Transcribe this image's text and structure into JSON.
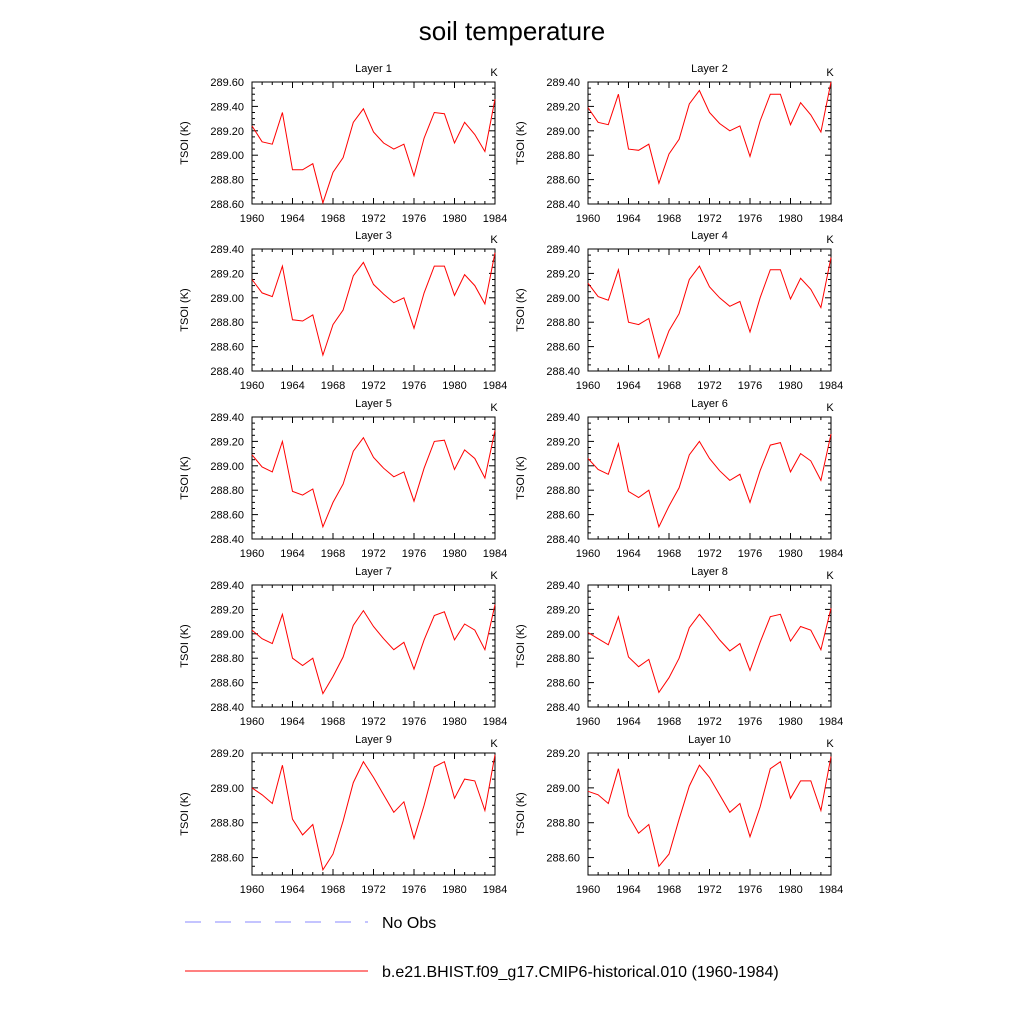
{
  "figure": {
    "title": "soil temperature",
    "legend": [
      {
        "label": "No Obs",
        "color": "#8888ff",
        "dash": true
      },
      {
        "label": "b.e21.BHIST.f09_g17.CMIP6-historical.010 (1960-1984)",
        "color": "#ff0000",
        "dash": false
      }
    ]
  },
  "chart_data": [
    {
      "type": "line",
      "title": "Layer 1",
      "units": "K",
      "ylabel": "TSOI  (K)",
      "xlim": [
        1960,
        1984
      ],
      "ylim": [
        288.6,
        289.6
      ],
      "xticks": [
        "1960",
        "1964",
        "1968",
        "1972",
        "1976",
        "1980",
        "1984"
      ],
      "yticks": [
        "288.60",
        "288.80",
        "289.00",
        "289.20",
        "289.40",
        "289.60"
      ],
      "x": [
        1960,
        1961,
        1962,
        1963,
        1964,
        1965,
        1966,
        1967,
        1968,
        1969,
        1970,
        1971,
        1972,
        1973,
        1974,
        1975,
        1976,
        1977,
        1978,
        1979,
        1980,
        1981,
        1982,
        1983,
        1984
      ],
      "series": [
        {
          "color": "#ff0000",
          "values": [
            289.24,
            289.11,
            289.09,
            289.35,
            288.88,
            288.88,
            288.93,
            288.61,
            288.86,
            288.98,
            289.27,
            289.38,
            289.19,
            289.1,
            289.05,
            289.09,
            288.83,
            289.14,
            289.35,
            289.34,
            289.1,
            289.27,
            289.17,
            289.03,
            289.46
          ]
        }
      ]
    },
    {
      "type": "line",
      "title": "Layer 2",
      "units": "K",
      "ylabel": "TSOI  (K)",
      "xlim": [
        1960,
        1984
      ],
      "ylim": [
        288.4,
        289.4
      ],
      "xticks": [
        "1960",
        "1964",
        "1968",
        "1972",
        "1976",
        "1980",
        "1984"
      ],
      "yticks": [
        "288.40",
        "288.60",
        "288.80",
        "289.00",
        "289.20",
        "289.40"
      ],
      "x": [
        1960,
        1961,
        1962,
        1963,
        1964,
        1965,
        1966,
        1967,
        1968,
        1969,
        1970,
        1971,
        1972,
        1973,
        1974,
        1975,
        1976,
        1977,
        1978,
        1979,
        1980,
        1981,
        1982,
        1983,
        1984
      ],
      "series": [
        {
          "color": "#ff0000",
          "values": [
            289.19,
            289.07,
            289.05,
            289.3,
            288.85,
            288.84,
            288.89,
            288.57,
            288.81,
            288.93,
            289.22,
            289.33,
            289.15,
            289.06,
            289.0,
            289.04,
            288.79,
            289.08,
            289.3,
            289.3,
            289.05,
            289.23,
            289.13,
            288.99,
            289.4
          ]
        }
      ]
    },
    {
      "type": "line",
      "title": "Layer 3",
      "units": "K",
      "ylabel": "TSOI  (K)",
      "xlim": [
        1960,
        1984
      ],
      "ylim": [
        288.4,
        289.4
      ],
      "xticks": [
        "1960",
        "1964",
        "1968",
        "1972",
        "1976",
        "1980",
        "1984"
      ],
      "yticks": [
        "288.40",
        "288.60",
        "288.80",
        "289.00",
        "289.20",
        "289.40"
      ],
      "x": [
        1960,
        1961,
        1962,
        1963,
        1964,
        1965,
        1966,
        1967,
        1968,
        1969,
        1970,
        1971,
        1972,
        1973,
        1974,
        1975,
        1976,
        1977,
        1978,
        1979,
        1980,
        1981,
        1982,
        1983,
        1984
      ],
      "series": [
        {
          "color": "#ff0000",
          "values": [
            289.15,
            289.04,
            289.01,
            289.26,
            288.82,
            288.81,
            288.86,
            288.53,
            288.78,
            288.9,
            289.18,
            289.29,
            289.11,
            289.03,
            288.96,
            289.0,
            288.75,
            289.04,
            289.26,
            289.26,
            289.02,
            289.19,
            289.1,
            288.95,
            289.37
          ]
        }
      ]
    },
    {
      "type": "line",
      "title": "Layer 4",
      "units": "K",
      "ylabel": "TSOI  (K)",
      "xlim": [
        1960,
        1984
      ],
      "ylim": [
        288.4,
        289.4
      ],
      "xticks": [
        "1960",
        "1964",
        "1968",
        "1972",
        "1976",
        "1980",
        "1984"
      ],
      "yticks": [
        "288.40",
        "288.60",
        "288.80",
        "289.00",
        "289.20",
        "289.40"
      ],
      "x": [
        1960,
        1961,
        1962,
        1963,
        1964,
        1965,
        1966,
        1967,
        1968,
        1969,
        1970,
        1971,
        1972,
        1973,
        1974,
        1975,
        1976,
        1977,
        1978,
        1979,
        1980,
        1981,
        1982,
        1983,
        1984
      ],
      "series": [
        {
          "color": "#ff0000",
          "values": [
            289.12,
            289.01,
            288.98,
            289.23,
            288.8,
            288.78,
            288.83,
            288.51,
            288.73,
            288.87,
            289.15,
            289.26,
            289.09,
            289.0,
            288.93,
            288.97,
            288.72,
            289.0,
            289.23,
            289.23,
            288.99,
            289.16,
            289.07,
            288.92,
            289.33
          ]
        }
      ]
    },
    {
      "type": "line",
      "title": "Layer 5",
      "units": "K",
      "ylabel": "TSOI  (K)",
      "xlim": [
        1960,
        1984
      ],
      "ylim": [
        288.4,
        289.4
      ],
      "xticks": [
        "1960",
        "1964",
        "1968",
        "1972",
        "1976",
        "1980",
        "1984"
      ],
      "yticks": [
        "288.40",
        "288.60",
        "288.80",
        "289.00",
        "289.20",
        "289.40"
      ],
      "x": [
        1960,
        1961,
        1962,
        1963,
        1964,
        1965,
        1966,
        1967,
        1968,
        1969,
        1970,
        1971,
        1972,
        1973,
        1974,
        1975,
        1976,
        1977,
        1978,
        1979,
        1980,
        1981,
        1982,
        1983,
        1984
      ],
      "series": [
        {
          "color": "#ff0000",
          "values": [
            289.09,
            288.99,
            288.95,
            289.2,
            288.79,
            288.76,
            288.81,
            288.5,
            288.7,
            288.85,
            289.12,
            289.23,
            289.07,
            288.98,
            288.91,
            288.95,
            288.71,
            288.98,
            289.2,
            289.21,
            288.97,
            289.13,
            289.06,
            288.9,
            289.29
          ]
        }
      ]
    },
    {
      "type": "line",
      "title": "Layer 6",
      "units": "K",
      "ylabel": "TSOI  (K)",
      "xlim": [
        1960,
        1984
      ],
      "ylim": [
        288.4,
        289.4
      ],
      "xticks": [
        "1960",
        "1964",
        "1968",
        "1972",
        "1976",
        "1980",
        "1984"
      ],
      "yticks": [
        "288.40",
        "288.60",
        "288.80",
        "289.00",
        "289.20",
        "289.40"
      ],
      "x": [
        1960,
        1961,
        1962,
        1963,
        1964,
        1965,
        1966,
        1967,
        1968,
        1969,
        1970,
        1971,
        1972,
        1973,
        1974,
        1975,
        1976,
        1977,
        1978,
        1979,
        1980,
        1981,
        1982,
        1983,
        1984
      ],
      "series": [
        {
          "color": "#ff0000",
          "values": [
            289.06,
            288.97,
            288.93,
            289.18,
            288.79,
            288.74,
            288.8,
            288.5,
            288.67,
            288.82,
            289.09,
            289.2,
            289.06,
            288.96,
            288.88,
            288.93,
            288.7,
            288.96,
            289.17,
            289.19,
            288.95,
            289.1,
            289.04,
            288.88,
            289.26
          ]
        }
      ]
    },
    {
      "type": "line",
      "title": "Layer 7",
      "units": "K",
      "ylabel": "TSOI  (K)",
      "xlim": [
        1960,
        1984
      ],
      "ylim": [
        288.4,
        289.4
      ],
      "xticks": [
        "1960",
        "1964",
        "1968",
        "1972",
        "1976",
        "1980",
        "1984"
      ],
      "yticks": [
        "288.40",
        "288.60",
        "288.80",
        "289.00",
        "289.20",
        "289.40"
      ],
      "x": [
        1960,
        1961,
        1962,
        1963,
        1964,
        1965,
        1966,
        1967,
        1968,
        1969,
        1970,
        1971,
        1972,
        1973,
        1974,
        1975,
        1976,
        1977,
        1978,
        1979,
        1980,
        1981,
        1982,
        1983,
        1984
      ],
      "series": [
        {
          "color": "#ff0000",
          "values": [
            289.03,
            288.96,
            288.92,
            289.16,
            288.8,
            288.74,
            288.8,
            288.51,
            288.65,
            288.81,
            289.07,
            289.19,
            289.06,
            288.96,
            288.87,
            288.93,
            288.71,
            288.95,
            289.15,
            289.18,
            288.95,
            289.08,
            289.03,
            288.87,
            289.24
          ]
        }
      ]
    },
    {
      "type": "line",
      "title": "Layer 8",
      "units": "K",
      "ylabel": "TSOI  (K)",
      "xlim": [
        1960,
        1984
      ],
      "ylim": [
        288.4,
        289.4
      ],
      "xticks": [
        "1960",
        "1964",
        "1968",
        "1972",
        "1976",
        "1980",
        "1984"
      ],
      "yticks": [
        "288.40",
        "288.60",
        "288.80",
        "289.00",
        "289.20",
        "289.40"
      ],
      "x": [
        1960,
        1961,
        1962,
        1963,
        1964,
        1965,
        1966,
        1967,
        1968,
        1969,
        1970,
        1971,
        1972,
        1973,
        1974,
        1975,
        1976,
        1977,
        1978,
        1979,
        1980,
        1981,
        1982,
        1983,
        1984
      ],
      "series": [
        {
          "color": "#ff0000",
          "values": [
            289.01,
            288.96,
            288.91,
            289.14,
            288.81,
            288.73,
            288.79,
            288.52,
            288.64,
            288.8,
            289.05,
            289.16,
            289.06,
            288.95,
            288.86,
            288.92,
            288.7,
            288.93,
            289.14,
            289.16,
            288.94,
            289.06,
            289.03,
            288.87,
            289.21
          ]
        }
      ]
    },
    {
      "type": "line",
      "title": "Layer 9",
      "units": "K",
      "ylabel": "TSOI  (K)",
      "xlim": [
        1960,
        1984
      ],
      "ylim": [
        288.5,
        289.2
      ],
      "xticks": [
        "1960",
        "1964",
        "1968",
        "1972",
        "1976",
        "1980",
        "1984"
      ],
      "yticks": [
        "288.60",
        "288.80",
        "289.00",
        "289.20"
      ],
      "x": [
        1960,
        1961,
        1962,
        1963,
        1964,
        1965,
        1966,
        1967,
        1968,
        1969,
        1970,
        1971,
        1972,
        1973,
        1974,
        1975,
        1976,
        1977,
        1978,
        1979,
        1980,
        1981,
        1982,
        1983,
        1984
      ],
      "series": [
        {
          "color": "#ff0000",
          "values": [
            289.0,
            288.96,
            288.91,
            289.13,
            288.82,
            288.73,
            288.79,
            288.53,
            288.62,
            288.81,
            289.03,
            289.15,
            289.06,
            288.96,
            288.86,
            288.92,
            288.71,
            288.9,
            289.12,
            289.15,
            288.94,
            289.05,
            289.04,
            288.87,
            289.19
          ]
        }
      ]
    },
    {
      "type": "line",
      "title": "Layer 10",
      "units": "K",
      "ylabel": "TSOI  (K)",
      "xlim": [
        1960,
        1984
      ],
      "ylim": [
        288.5,
        289.2
      ],
      "xticks": [
        "1960",
        "1964",
        "1968",
        "1972",
        "1976",
        "1980",
        "1984"
      ],
      "yticks": [
        "288.60",
        "288.80",
        "289.00",
        "289.20"
      ],
      "x": [
        1960,
        1961,
        1962,
        1963,
        1964,
        1965,
        1966,
        1967,
        1968,
        1969,
        1970,
        1971,
        1972,
        1973,
        1974,
        1975,
        1976,
        1977,
        1978,
        1979,
        1980,
        1981,
        1982,
        1983,
        1984
      ],
      "series": [
        {
          "color": "#ff0000",
          "values": [
            288.98,
            288.96,
            288.91,
            289.11,
            288.84,
            288.74,
            288.79,
            288.55,
            288.62,
            288.82,
            289.01,
            289.13,
            289.06,
            288.96,
            288.86,
            288.91,
            288.72,
            288.89,
            289.11,
            289.15,
            288.94,
            289.04,
            289.04,
            288.87,
            289.18
          ]
        }
      ]
    }
  ]
}
